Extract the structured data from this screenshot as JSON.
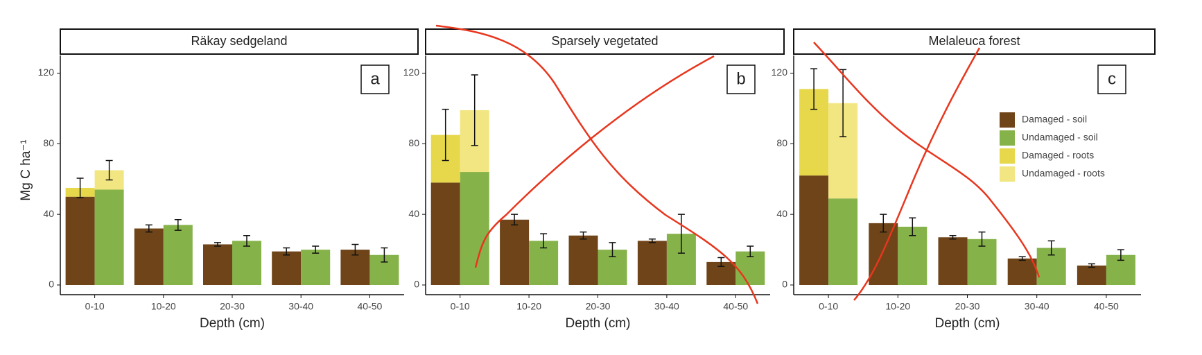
{
  "chart_data": [
    {
      "type": "bar",
      "stacked": true,
      "title": "Räkay sedgeland",
      "panel_label": "a",
      "ylabel": "Mg C ha⁻¹",
      "xlabel": "Depth (cm)",
      "categories": [
        "0-10",
        "10-20",
        "20-30",
        "30-40",
        "40-50"
      ],
      "ylim": [
        0,
        130
      ],
      "yticks": [
        0,
        40,
        80,
        120
      ],
      "series": [
        {
          "color": "#6e4418",
          "group": 0,
          "values": [
            50,
            32,
            23,
            19,
            20
          ],
          "errors": [
            null,
            2,
            1,
            2,
            3
          ]
        },
        {
          "color": "#86b24a",
          "group": 1,
          "values": [
            54,
            34,
            25,
            20,
            17
          ],
          "errors": [
            null,
            3,
            3,
            2,
            4
          ]
        },
        {
          "color": "#e6d84a",
          "group": 0,
          "values": [
            5,
            null,
            null,
            null,
            null
          ],
          "errors": [
            5.5,
            null,
            null,
            null,
            null
          ]
        },
        {
          "color": "#f2e682",
          "group": 1,
          "values": [
            11,
            null,
            null,
            null,
            null
          ],
          "errors": [
            5.5,
            null,
            null,
            null,
            null
          ]
        }
      ]
    },
    {
      "type": "bar",
      "stacked": true,
      "title": "Sparsely vegetated",
      "panel_label": "b",
      "xlabel": "Depth (cm)",
      "categories": [
        "0-10",
        "10-20",
        "20-30",
        "30-40",
        "40-50"
      ],
      "ylim": [
        0,
        130
      ],
      "yticks": [
        0,
        40,
        80,
        120
      ],
      "series": [
        {
          "color": "#6e4418",
          "group": 0,
          "values": [
            58,
            37,
            28,
            25,
            13
          ],
          "errors": [
            null,
            3,
            2,
            1,
            2.5
          ]
        },
        {
          "color": "#86b24a",
          "group": 1,
          "values": [
            64,
            25,
            20,
            29,
            19
          ],
          "errors": [
            null,
            4,
            4,
            11,
            3
          ]
        },
        {
          "color": "#e6d84a",
          "group": 0,
          "values": [
            27,
            null,
            null,
            null,
            null
          ],
          "errors": [
            14.5,
            null,
            null,
            null,
            null
          ]
        },
        {
          "color": "#f2e682",
          "group": 1,
          "values": [
            35,
            null,
            null,
            null,
            null
          ],
          "errors": [
            20,
            null,
            null,
            null,
            null
          ]
        }
      ]
    },
    {
      "type": "bar",
      "stacked": true,
      "title": "Melaleuca forest",
      "panel_label": "c",
      "xlabel": "Depth (cm)",
      "legend": "upper right",
      "categories": [
        "0-10",
        "10-20",
        "20-30",
        "30-40",
        "40-50"
      ],
      "ylim": [
        0,
        130
      ],
      "yticks": [
        0,
        40,
        80,
        120
      ],
      "series": [
        {
          "name": "Damaged - soil",
          "color": "#6e4418",
          "group": 0,
          "values": [
            62,
            35,
            27,
            15,
            11
          ],
          "errors": [
            null,
            5,
            1,
            1,
            1
          ]
        },
        {
          "name": "Undamaged - soil",
          "color": "#86b24a",
          "group": 1,
          "values": [
            49,
            33,
            26,
            21,
            17
          ],
          "errors": [
            null,
            5,
            4,
            4,
            3
          ]
        },
        {
          "name": "Damaged - roots",
          "color": "#e6d84a",
          "group": 0,
          "values": [
            49,
            null,
            null,
            null,
            null
          ],
          "errors": [
            11.5,
            null,
            null,
            null,
            null
          ]
        },
        {
          "name": "Undamaged - roots",
          "color": "#f2e682",
          "group": 1,
          "values": [
            54,
            null,
            null,
            null,
            null
          ],
          "errors": [
            19,
            null,
            null,
            null,
            null
          ]
        }
      ]
    }
  ]
}
